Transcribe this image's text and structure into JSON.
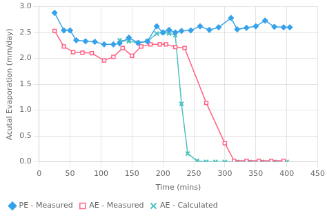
{
  "chart_data": {
    "type": "line",
    "xlabel": "Time (mins)",
    "ylabel": "Acutal Evaporation (mm/day)",
    "series": [
      {
        "name": "PE - Measured",
        "marker": "diamond",
        "x": [
          25,
          40,
          50,
          60,
          75,
          90,
          105,
          120,
          130,
          145,
          160,
          175,
          190,
          200,
          210,
          220,
          230,
          245,
          260,
          275,
          290,
          310,
          320,
          335,
          350,
          365,
          380,
          395,
          405
        ],
        "values": [
          2.88,
          2.54,
          2.54,
          2.35,
          2.33,
          2.32,
          2.27,
          2.27,
          2.29,
          2.4,
          2.3,
          2.33,
          2.62,
          2.5,
          2.55,
          2.5,
          2.53,
          2.54,
          2.62,
          2.55,
          2.6,
          2.78,
          2.56,
          2.59,
          2.62,
          2.73,
          2.61,
          2.6,
          2.6
        ]
      },
      {
        "name": "AE - Measured",
        "marker": "square",
        "x": [
          25,
          40,
          55,
          70,
          85,
          105,
          120,
          135,
          150,
          165,
          180,
          195,
          205,
          220,
          235,
          270,
          300,
          315,
          335,
          355,
          375,
          395
        ],
        "values": [
          2.53,
          2.23,
          2.12,
          2.11,
          2.1,
          1.96,
          2.03,
          2.2,
          2.05,
          2.23,
          2.27,
          2.27,
          2.27,
          2.22,
          2.2,
          1.14,
          0.36,
          0.02,
          0.02,
          0.02,
          0.02,
          0.02
        ]
      },
      {
        "name": "AE - Calculated",
        "marker": "cross",
        "x": [
          130,
          145,
          160,
          175,
          190,
          200,
          210,
          220,
          230,
          240,
          255,
          270,
          285,
          300,
          320,
          340,
          360,
          380,
          400
        ],
        "values": [
          2.35,
          2.33,
          2.3,
          2.33,
          2.48,
          2.5,
          2.48,
          2.45,
          1.12,
          0.16,
          0.02,
          0.0,
          0.0,
          0.0,
          0.0,
          0.0,
          0.0,
          0.0,
          0.0
        ]
      }
    ],
    "xlim": [
      0,
      450
    ],
    "ylim": [
      0.0,
      3.0
    ],
    "xticks": [
      0,
      50,
      100,
      150,
      200,
      250,
      300,
      350,
      400,
      450
    ],
    "yticks": [
      {
        "value": 0,
        "label": "0.0"
      },
      0.5,
      {
        "value": 1,
        "label": "1.0"
      },
      1.5,
      {
        "value": 2,
        "label": "2.0"
      },
      2.5,
      {
        "value": 3,
        "label": "3.0"
      }
    ],
    "grid": true,
    "legend": "lower left"
  }
}
